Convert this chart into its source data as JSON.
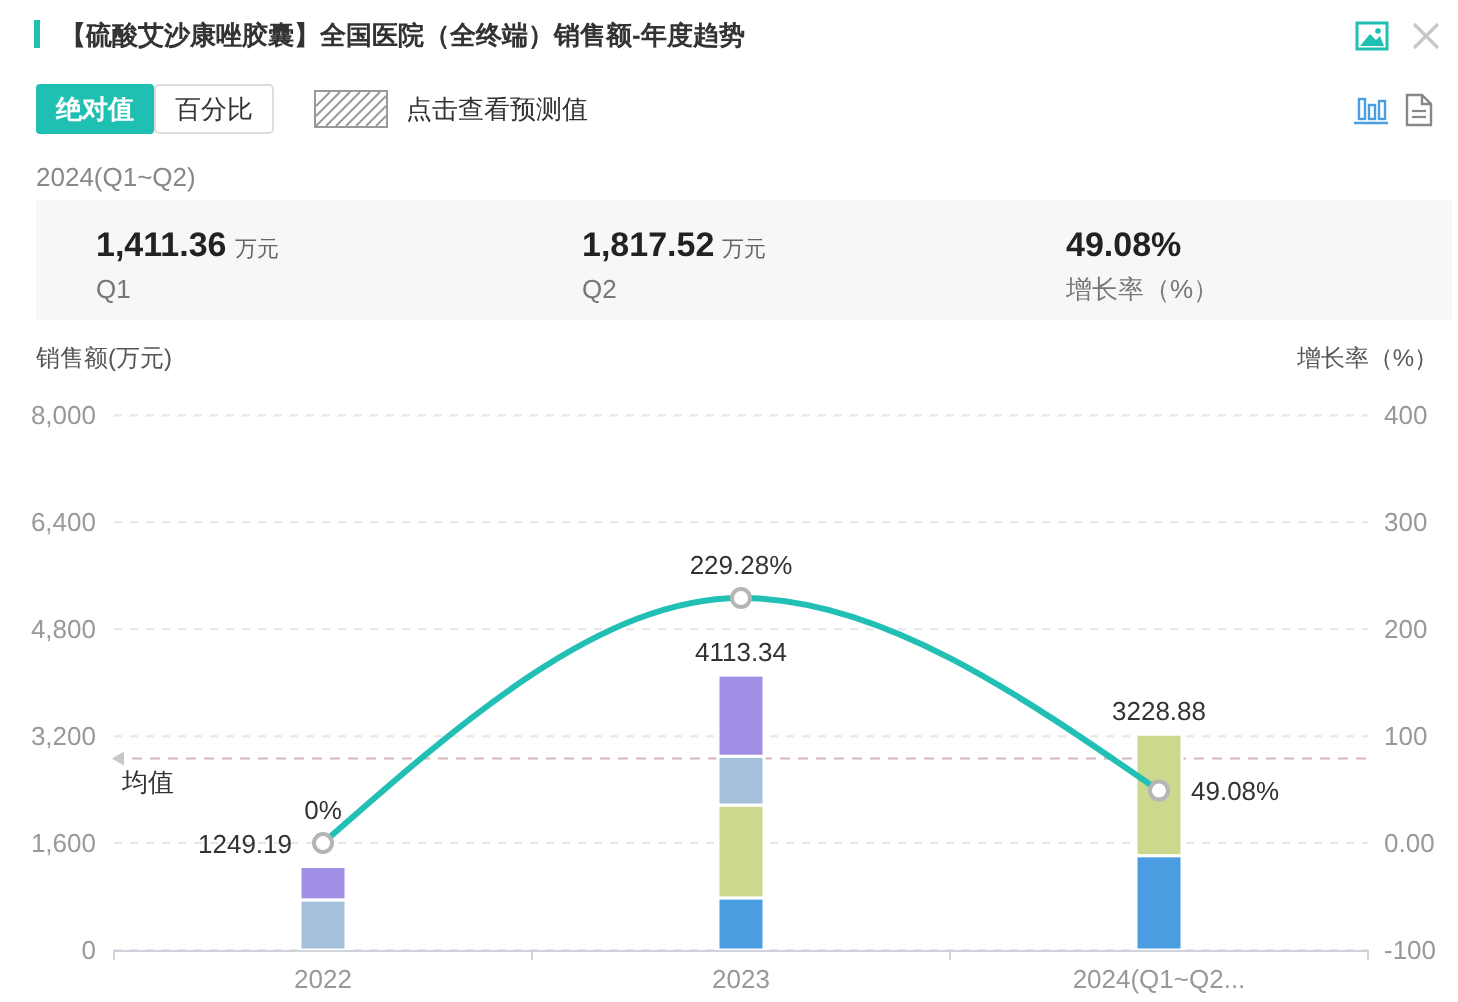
{
  "chart_data": {
    "type": "bar",
    "title": "【硫酸艾沙康唑胶囊】全国医院（全终端）销售额-年度趋势",
    "annotations": [
      "绝对值",
      "百分比",
      "点击查看预测值",
      "2024(Q1~Q2)",
      "1,411.36",
      "万元",
      "Q1",
      "1,817.52",
      "万元",
      "Q2",
      "49.08%",
      "增长率（%）"
    ],
    "categories": [
      "2022",
      "2023",
      "2024(Q1~Q2..."
    ],
    "stacked": true,
    "series": [
      {
        "color": "#4a9de1",
        "values": [
          null,
          780,
          1411.36
        ]
      },
      {
        "color": "#cbd98f",
        "values": [
          null,
          1390,
          1817.52
        ]
      },
      {
        "color": "#a5c0db",
        "values": [
          750,
          730,
          null
        ]
      },
      {
        "color": "#a18fe5",
        "values": [
          499.19,
          1213.34,
          null
        ]
      },
      {
        "type": "line",
        "axis": "y2",
        "color": "#22bfb5",
        "values": [
          0,
          229.28,
          49.08
        ],
        "value_labels": [
          "0%",
          "229.28%",
          "49.08%"
        ]
      }
    ],
    "totals": [
      "1249.19",
      "4113.34",
      "3228.88"
    ],
    "marker": "circle",
    "ylabel": "销售额(万元)",
    "y2label": "增长率（%）",
    "ylim": [
      0,
      8000
    ],
    "yticks": [
      0,
      {
        "value": 1600,
        "label": "1,600"
      },
      {
        "value": 3200,
        "label": "3,200"
      },
      {
        "value": 4800,
        "label": "4,800"
      },
      {
        "value": 6400,
        "label": "6,400"
      },
      {
        "value": 8000,
        "label": "8,000"
      }
    ],
    "y2lim": [
      -100,
      400
    ],
    "y2ticks": [
      -100,
      {
        "value": 0,
        "label": "0.00"
      },
      100,
      200,
      300,
      400
    ],
    "ref_lines": [
      {
        "axis": "y",
        "value": 2864,
        "label": "均值",
        "color": "#d6b8b8",
        "line_style": "dashed"
      }
    ],
    "grid": "y"
  }
}
